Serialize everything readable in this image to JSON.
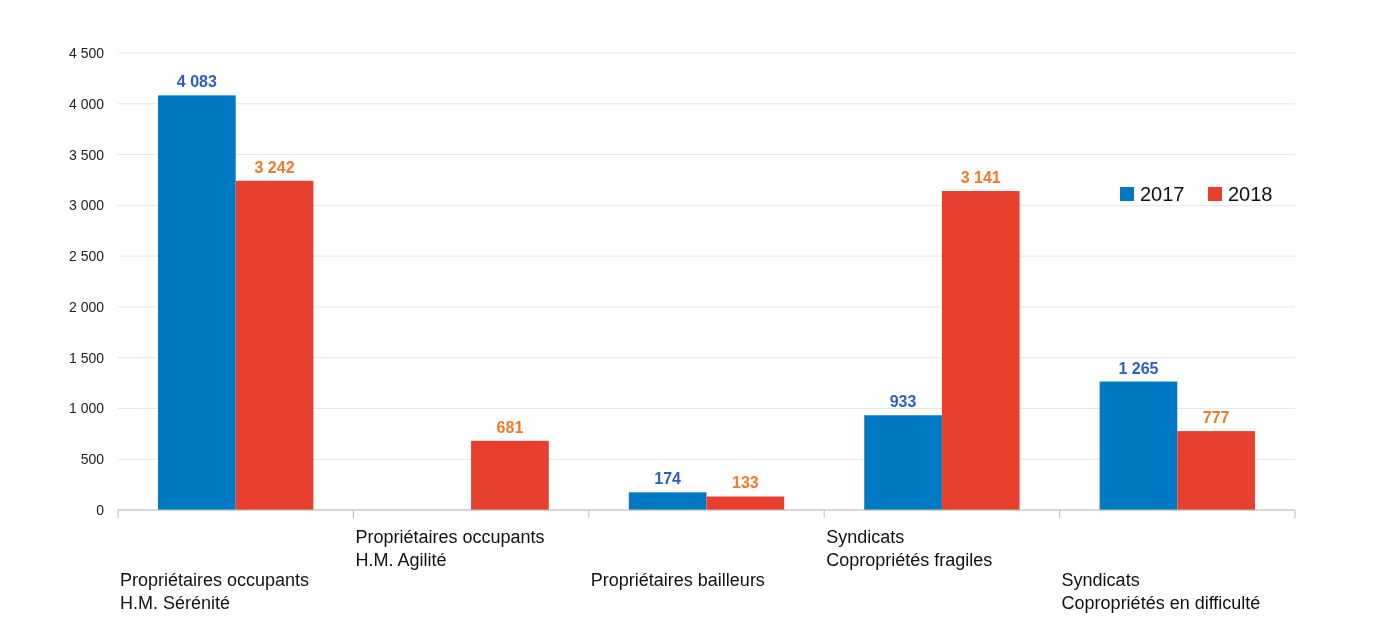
{
  "chart_data": {
    "type": "bar",
    "categories": [
      "Propriétaires occupants\nH.M. Sérénité",
      "Propriétaires occupants\nH.M. Agilité",
      "Propriétaires bailleurs",
      "Syndicats\nCopropriétés fragiles",
      "Syndicats\nCopropriétés en difficulté"
    ],
    "series": [
      {
        "name": "2017",
        "color": "#0079c5",
        "values": [
          4083,
          null,
          174,
          933,
          1265
        ],
        "value_labels": [
          "4 083",
          null,
          "174",
          "933",
          "1 265"
        ]
      },
      {
        "name": "2018",
        "color": "#e8402e",
        "values": [
          3242,
          681,
          133,
          3141,
          777
        ],
        "value_labels": [
          "3 242",
          "681",
          "133",
          "3 141",
          "777"
        ]
      }
    ],
    "ylim": [
      0,
      4500
    ],
    "yticks": [
      0,
      500,
      {
        "value": 1000,
        "label": "1 000"
      },
      {
        "value": 1500,
        "label": "1 500"
      },
      {
        "value": 2000,
        "label": "2 000"
      },
      {
        "value": 2500,
        "label": "2 500"
      },
      {
        "value": 3000,
        "label": "3 000"
      },
      {
        "value": 3500,
        "label": "3 500"
      },
      {
        "value": 4000,
        "label": "4 000"
      },
      {
        "value": 4500,
        "label": "4 500"
      }
    ],
    "grid": "y",
    "legend": "top right"
  }
}
